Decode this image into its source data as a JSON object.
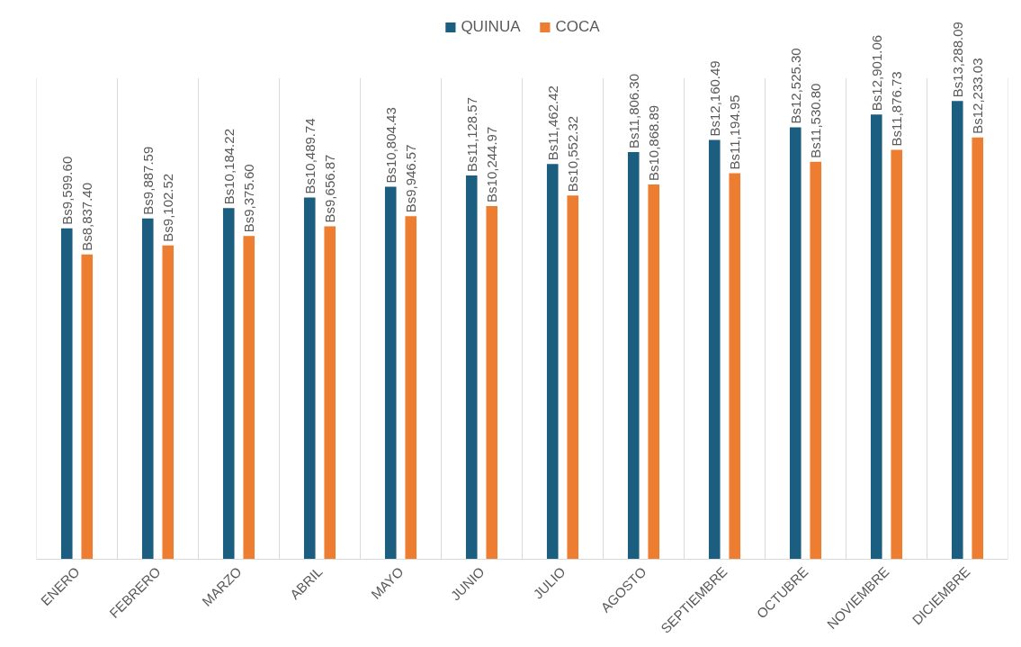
{
  "chart_data": {
    "type": "bar",
    "categories": [
      "ENERO",
      "FEBRERO",
      "MARZO",
      "ABRIL",
      "MAYO",
      "JUNIO",
      "JULIO",
      "AGOSTO",
      "SEPTIEMBRE",
      "OCTUBRE",
      "NOVIEMBRE",
      "DICIEMBRE"
    ],
    "series": [
      {
        "name": "QUINUA",
        "color": "#1b5e80",
        "values": [
          9599.6,
          9887.59,
          10184.22,
          10489.74,
          10804.43,
          11128.57,
          11462.42,
          11806.3,
          12160.49,
          12525.3,
          12901.06,
          13288.09
        ],
        "value_labels": [
          "Bs9,599.60",
          "Bs9,887.59",
          "Bs10,184.22",
          "Bs10,489.74",
          "Bs10,804.43",
          "Bs11,128.57",
          "Bs11,462.42",
          "Bs11,806.30",
          "Bs12,160.49",
          "Bs12,525.30",
          "Bs12,901.06",
          "Bs13,288.09"
        ]
      },
      {
        "name": "COCA",
        "color": "#ed7d31",
        "values": [
          8837.4,
          9102.52,
          9375.6,
          9656.87,
          9946.57,
          10244.97,
          10552.32,
          10868.89,
          11194.95,
          11530.8,
          11876.73,
          12233.03
        ],
        "value_labels": [
          "Bs8,837.40",
          "Bs9,102.52",
          "Bs9,375.60",
          "Bs9,656.87",
          "Bs9,946.57",
          "Bs10,244.97",
          "Bs10,552.32",
          "Bs10,868.89",
          "Bs11,194.95",
          "Bs11,530.80",
          "Bs11,876.73",
          "Bs12,233.03"
        ]
      }
    ],
    "grid": "x",
    "legend": "top"
  }
}
